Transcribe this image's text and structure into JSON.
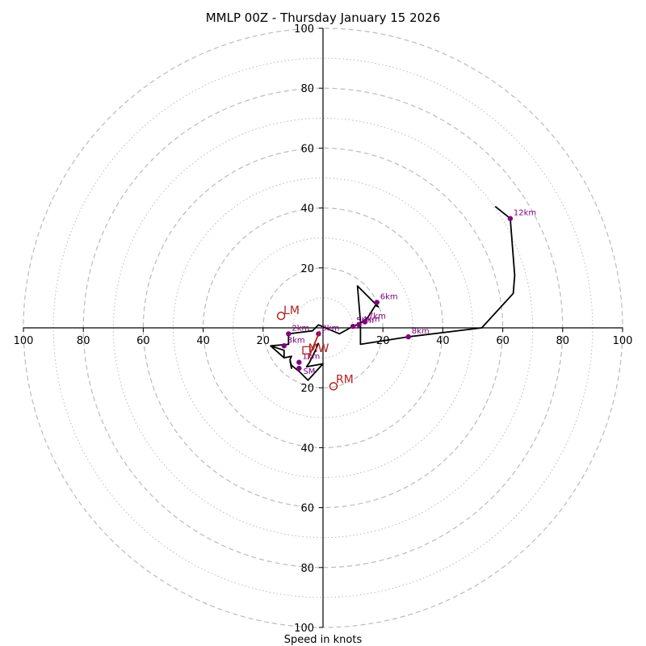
{
  "chart_data": {
    "type": "hodograph",
    "title": "MMLP 00Z - Thursday January 15 2026",
    "xlabel": "Speed in knots",
    "xlim": [
      -100,
      100
    ],
    "ylim": [
      -100,
      100
    ],
    "ring_major": [
      20,
      40,
      60,
      80,
      100
    ],
    "ring_minor": [
      10,
      30,
      50,
      70,
      90
    ],
    "x_tick_labels": [
      "100",
      "80",
      "60",
      "40",
      "20",
      "20",
      "40",
      "60",
      "80",
      "100"
    ],
    "x_tick_values": [
      -100,
      -80,
      -60,
      -40,
      -20,
      20,
      40,
      60,
      80,
      100
    ],
    "y_tick_labels": [
      "100",
      "80",
      "60",
      "40",
      "20",
      "20",
      "40",
      "60",
      "80",
      "100"
    ],
    "y_tick_values": [
      100,
      80,
      60,
      40,
      20,
      -20,
      -40,
      -60,
      -80,
      -100
    ],
    "colors": {
      "trace": "#000000",
      "height_marker": "#800080",
      "storm_motion": "#b22222",
      "grid": "#bbbbbb",
      "axis": "#000000"
    },
    "trace": [
      [
        -1.5,
        -5.0
      ],
      [
        -2.5,
        -7.5
      ],
      [
        -3.5,
        -9.5
      ],
      [
        -4.5,
        -11.5
      ],
      [
        -5.5,
        -13.0
      ],
      [
        0.0,
        -12.0
      ],
      [
        -5.0,
        -17.5
      ],
      [
        -8.0,
        -14.5
      ],
      [
        -10.5,
        -12.5
      ],
      [
        -11.0,
        -11.0
      ],
      [
        -10.5,
        -13.5
      ],
      [
        -11.0,
        -10.5
      ],
      [
        -10.5,
        -9.5
      ],
      [
        -13.0,
        -10.0
      ],
      [
        -17.5,
        -6.0
      ],
      [
        -13.0,
        -7.5
      ],
      [
        -13.0,
        -10.0
      ],
      [
        -17.5,
        -6.0
      ],
      [
        -11.5,
        -5.5
      ],
      [
        -11.5,
        -2.0
      ],
      [
        -3.5,
        -1.0
      ],
      [
        -1.5,
        1.0
      ],
      [
        5.5,
        -2.0
      ],
      [
        10.0,
        0.5
      ],
      [
        12.5,
        1.5
      ],
      [
        15.0,
        3.5
      ],
      [
        17.5,
        7.5
      ],
      [
        18.5,
        7.0
      ],
      [
        11.5,
        14.0
      ],
      [
        12.5,
        2.0
      ],
      [
        12.5,
        -5.5
      ],
      [
        28.5,
        -3.0
      ],
      [
        53.0,
        0.0
      ],
      [
        63.5,
        11.5
      ],
      [
        64.0,
        17.5
      ],
      [
        62.5,
        36.5
      ],
      [
        57.5,
        40.5
      ]
    ],
    "height_markers": [
      {
        "label": "0km",
        "u": -1.5,
        "v": -2.0
      },
      {
        "label": "1km",
        "u": -8.0,
        "v": -11.5
      },
      {
        "label": "",
        "u": -8.0,
        "v": -13.5
      },
      {
        "label": "3km",
        "u": -13.0,
        "v": -6.0
      },
      {
        "label": "2km",
        "u": -11.5,
        "v": -2.0
      },
      {
        "label": "4km",
        "u": 12.0,
        "v": 1.0
      },
      {
        "label": "5km",
        "u": 10.0,
        "v": 0.5
      },
      {
        "label": "7km",
        "u": 14.0,
        "v": 2.0
      },
      {
        "label": "6km",
        "u": 18.0,
        "v": 8.5
      },
      {
        "label": "8km",
        "u": 28.5,
        "v": -3.0
      },
      {
        "label": "12km",
        "u": 62.5,
        "v": 36.5
      }
    ],
    "storm_motion": {
      "lm": {
        "label": "LM",
        "u": -14.0,
        "v": 4.0
      },
      "rm": {
        "label": "RM",
        "u": 3.5,
        "v": -19.5
      },
      "mw": {
        "label": "MW",
        "u": -5.5,
        "v": -7.5
      },
      "sm_label": "SM",
      "sm": {
        "u": -5.0,
        "v": -10.5
      }
    }
  }
}
